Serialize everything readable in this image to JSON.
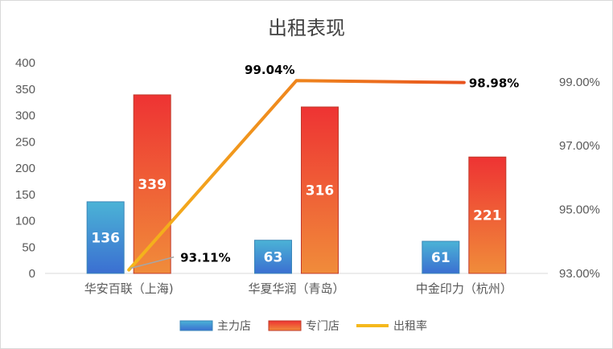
{
  "chart_data": {
    "type": "bar+line",
    "title": "出租表现",
    "categories": [
      "华安百联（上海)",
      "华夏华润（青岛）",
      "中金印力（杭州）"
    ],
    "series": [
      {
        "name": "主力店",
        "type": "bar",
        "axis": "left",
        "values": [
          136,
          63,
          61
        ],
        "labels": [
          "136",
          "63",
          "61"
        ]
      },
      {
        "name": "专门店",
        "type": "bar",
        "axis": "left",
        "values": [
          339,
          316,
          221
        ],
        "labels": [
          "339",
          "316",
          "221"
        ]
      },
      {
        "name": "出租率",
        "type": "line",
        "axis": "right",
        "values": [
          93.11,
          99.04,
          98.98
        ],
        "labels": [
          "93.11%",
          "99.04%",
          "98.98%"
        ]
      }
    ],
    "y_left": {
      "min": 0,
      "max": 400,
      "step": 50,
      "ticks": [
        "0",
        "50",
        "100",
        "150",
        "200",
        "250",
        "300",
        "350",
        "400"
      ]
    },
    "y_right": {
      "min": 93,
      "max": 99.6,
      "ticks": [
        {
          "value": 93,
          "label": "93.00%"
        },
        {
          "value": 95,
          "label": "95.00%"
        },
        {
          "value": 97,
          "label": "97.00%"
        },
        {
          "value": 99,
          "label": "99.00%"
        }
      ]
    },
    "grid": false,
    "legend": "bottom",
    "colors": {
      "main_top": "#4bb3d6",
      "main_bottom": "#3b6fd1",
      "spec_top": "#ee3333",
      "spec_bottom": "#f08c3a",
      "line_start": "#f5b81c",
      "line_end": "#e8521e"
    }
  }
}
